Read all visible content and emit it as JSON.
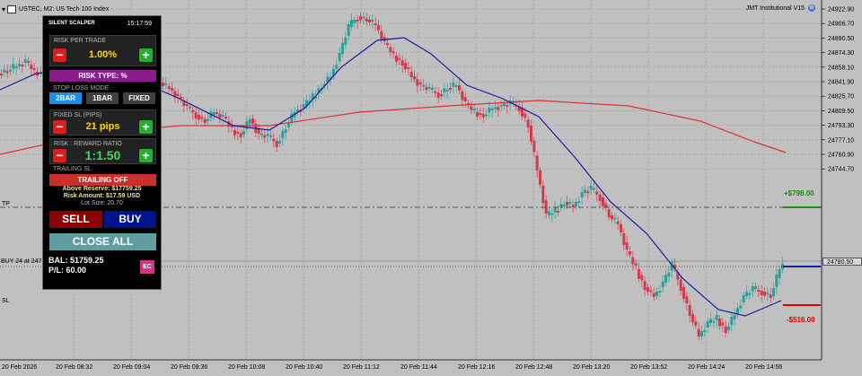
{
  "chart": {
    "symbol": "USTEC, M2:  US Tech 100 Index",
    "indicator": "JMT Institutional V15",
    "price_axis": [
      "24922.90",
      "24906.70",
      "24890.50",
      "24874.30",
      "24858.10",
      "24841.90",
      "24825.70",
      "24809.50",
      "24793.30",
      "24777.10",
      "24760.90",
      "24744.70"
    ],
    "current_price": "24780.50",
    "time_axis": [
      "20 Feb 2026",
      "20 Feb 08:32",
      "20 Feb 09:04",
      "20 Feb 09:36",
      "20 Feb 10:08",
      "20 Feb 10:40",
      "20 Feb 11:12",
      "20 Feb 11:44",
      "20 Feb 12:16",
      "20 Feb 12:48",
      "20 Feb 13:20",
      "20 Feb 13:52",
      "20 Feb 14:24",
      "20 Feb 14:56"
    ],
    "tp_label": "TP",
    "buy_label": "BUY 24 at 247",
    "sl_label": "SL",
    "tp_value": "+$798.00",
    "sl_value": "-$516.00",
    "colors": {
      "bull": "#2aa198",
      "bear": "#d33a4c",
      "fast_ma": "#1a1aa8",
      "slow_ma": "#e03030",
      "tp": "#1a8a1a",
      "sl": "#e00000"
    }
  },
  "panel": {
    "title": "SILENT SCALPER",
    "time": "15:17:59",
    "risk_label": "RISK PER TRADE",
    "risk_value": "1.00%",
    "risk_type": "RISK TYPE: %",
    "sl_mode_label": "STOP LOSS MODE",
    "sl_modes": [
      "2BAR",
      "1BAR",
      "FIXED"
    ],
    "fixed_sl_label": "FIXED SL (PIPS)",
    "fixed_sl_value": "21 pips",
    "rr_label": "RISK : REWARD RATIO",
    "rr_value": "1:1.50",
    "trailing_label": "TRAILING SL",
    "trailing_button": "TRAILING OFF",
    "above_reserve": "Above Reserve: $17759.25",
    "risk_amount": "Risk Amount: $17.59 USD",
    "lot_size": "Lot Size: 20.70",
    "sell": "SELL",
    "buy": "BUY",
    "close_all": "CLOSE ALL",
    "balance": "BAL: 51759.25",
    "pl": "P/L: 60.00",
    "ec": "EC",
    "minus": "−",
    "plus": "+"
  }
}
